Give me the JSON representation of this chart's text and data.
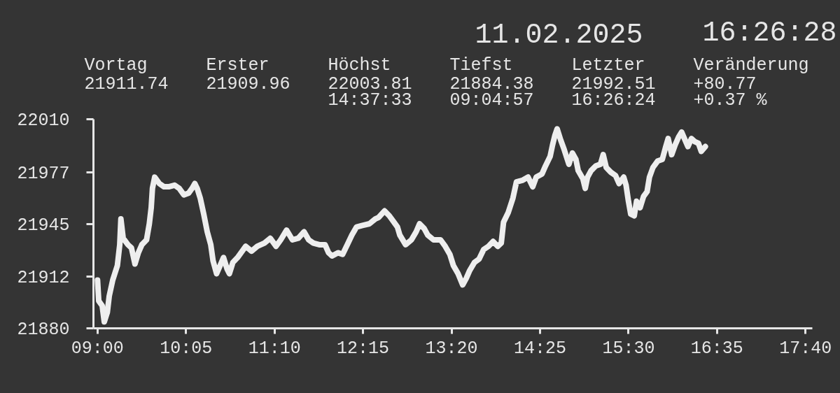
{
  "chart_data": {
    "type": "line",
    "title": "11.02.2025",
    "subtitle": "16:26:28",
    "annotations": [
      "Vortag\n21911.74",
      "Erster\n21909.96",
      "Höchst\n22003.81\n14:37:33",
      "Tiefst\n21884.38\n09:04:57",
      "Letzter\n21992.51\n16:26:24",
      "Veränderung\n+80.77\n+0.37 %"
    ],
    "color": "#eeeeee",
    "line_style": "solid",
    "x": [
      9.0,
      9.015,
      9.057,
      9.0825,
      9.12,
      9.143,
      9.186,
      9.243,
      9.272,
      9.286,
      9.314,
      9.372,
      9.415,
      9.458,
      9.5,
      9.543,
      9.6,
      9.634,
      9.657,
      9.672,
      9.7,
      9.757,
      9.814,
      9.871,
      9.943,
      10.0,
      10.057,
      10.114,
      10.157,
      10.191,
      10.22,
      10.257,
      10.3,
      10.343,
      10.386,
      10.414,
      10.457,
      10.5,
      10.542,
      10.585,
      10.614,
      10.657,
      10.714,
      10.771,
      10.814,
      10.885,
      10.957,
      11.043,
      11.114,
      11.185,
      11.242,
      11.314,
      11.386,
      11.457,
      11.528,
      11.585,
      11.642,
      11.714,
      11.785,
      11.828,
      11.871,
      11.943,
      12.0,
      12.057,
      12.114,
      12.171,
      12.243,
      12.328,
      12.4,
      12.442,
      12.513,
      12.571,
      12.628,
      12.671,
      12.7,
      12.771,
      12.842,
      12.9,
      12.942,
      12.999,
      13.042,
      13.113,
      13.199,
      13.256,
      13.313,
      13.356,
      13.413,
      13.47,
      13.513,
      13.556,
      13.614,
      13.67,
      13.727,
      13.785,
      13.842,
      13.899,
      13.942,
      13.97,
      14.027,
      14.085,
      14.128,
      14.199,
      14.27,
      14.327,
      14.37,
      14.441,
      14.484,
      14.541,
      14.57,
      14.599,
      14.626,
      14.67,
      14.713,
      14.77,
      14.813,
      14.856,
      14.884,
      14.941,
      14.97,
      14.998,
      15.041,
      15.099,
      15.156,
      15.19,
      15.227,
      15.284,
      15.341,
      15.384,
      15.441,
      15.47,
      15.499,
      15.527,
      15.57,
      15.598,
      15.641,
      15.684,
      15.727,
      15.756,
      15.799,
      15.856,
      15.913,
      15.956,
      15.985,
      16.028,
      16.07,
      16.113,
      16.15,
      16.184,
      16.227,
      16.27,
      16.313,
      16.356,
      16.39,
      16.44
    ],
    "values": [
      21910,
      21897,
      21894,
      21884,
      21890,
      21900,
      21910,
      21919,
      21932,
      21948,
      21936,
      21932,
      21930,
      21920,
      21927,
      21932,
      21935,
      21945,
      21955,
      21967,
      21974,
      21970,
      21968,
      21968,
      21969,
      21967,
      21963,
      21964,
      21967,
      21970,
      21967,
      21961,
      21951,
      21940,
      21932,
      21922,
      21914,
      21919,
      21924,
      21917,
      21914,
      21921,
      21924,
      21928,
      21931,
      21928,
      21931,
      21933,
      21936,
      21931,
      21935,
      21941,
      21935,
      21936,
      21940,
      21935,
      21933,
      21932,
      21932,
      21927,
      21925,
      21927,
      21926,
      21932,
      21938,
      21943,
      21944,
      21945,
      21948,
      21949,
      21953,
      21950,
      21946,
      21943,
      21938,
      21932,
      21935,
      21940,
      21945,
      21942,
      21938,
      21935,
      21935,
      21931,
      21926,
      21919,
      21914,
      21907,
      21911,
      21916,
      21921,
      21923,
      21929,
      21931,
      21934,
      21931,
      21933,
      21946,
      21952,
      21961,
      21971,
      21972,
      21974,
      21968,
      21974,
      21976,
      21981,
      21987,
      21994,
      22000,
      22004,
      21997,
      21991,
      21982,
      21989,
      21985,
      21978,
      21973,
      21967,
      21974,
      21978,
      21981,
      21982,
      21988,
      21980,
      21977,
      21975,
      21970,
      21974,
      21969,
      21959,
      21951,
      21950,
      21959,
      21955,
      21962,
      21965,
      21974,
      21980,
      21984,
      21985,
      21993,
      21998,
      21988,
      21994,
      21999,
      22002,
      21998,
      21993,
      21998,
      21996,
      21995,
      21990,
      21993
    ],
    "xlim": [
      8.95,
      17.75
    ],
    "xticks": [
      {
        "value": 9.0,
        "label": "09:00"
      },
      {
        "value": 10.0833,
        "label": "10:05"
      },
      {
        "value": 11.1667,
        "label": "11:10"
      },
      {
        "value": 12.25,
        "label": "12:15"
      },
      {
        "value": 13.3333,
        "label": "13:20"
      },
      {
        "value": 14.4167,
        "label": "14:25"
      },
      {
        "value": 15.5,
        "label": "15:30"
      },
      {
        "value": 16.5833,
        "label": "16:35"
      },
      {
        "value": 17.6667,
        "label": "17:40"
      }
    ],
    "ylim": [
      21880,
      22010
    ],
    "yticks": [
      21880,
      21912,
      21945,
      21977,
      22010
    ]
  }
}
